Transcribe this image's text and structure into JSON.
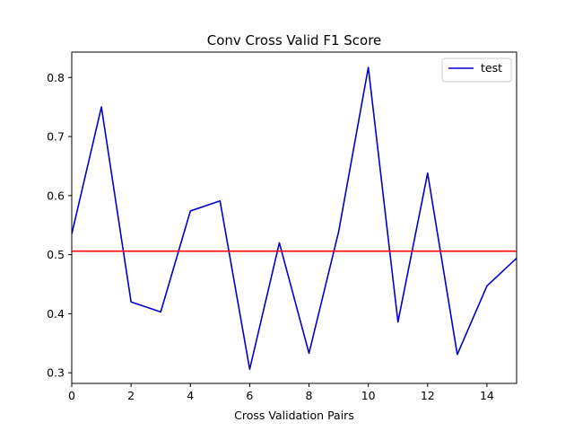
{
  "chart_data": {
    "type": "line",
    "title": "Conv Cross Valid F1 Score",
    "xlabel": "Cross Validation Pairs",
    "ylabel": "",
    "xlim": [
      0,
      15
    ],
    "ylim": [
      0.282,
      0.843
    ],
    "xticks": [
      0,
      2,
      4,
      6,
      8,
      10,
      12,
      14
    ],
    "yticks": [
      0.3,
      0.4,
      0.5,
      0.6,
      0.7,
      0.8
    ],
    "grid": false,
    "legend_position": "top-right",
    "series": [
      {
        "name": "test",
        "color": "#0000cc",
        "x": [
          0,
          1,
          2,
          3,
          4,
          5,
          6,
          7,
          8,
          9,
          10,
          11,
          12,
          13,
          14,
          15
        ],
        "values": [
          0.535,
          0.75,
          0.42,
          0.403,
          0.574,
          0.591,
          0.306,
          0.52,
          0.333,
          0.539,
          0.817,
          0.386,
          0.638,
          0.331,
          0.447,
          0.494
        ]
      }
    ],
    "reference_line": {
      "y": 0.506,
      "color": "#ff0000"
    }
  }
}
